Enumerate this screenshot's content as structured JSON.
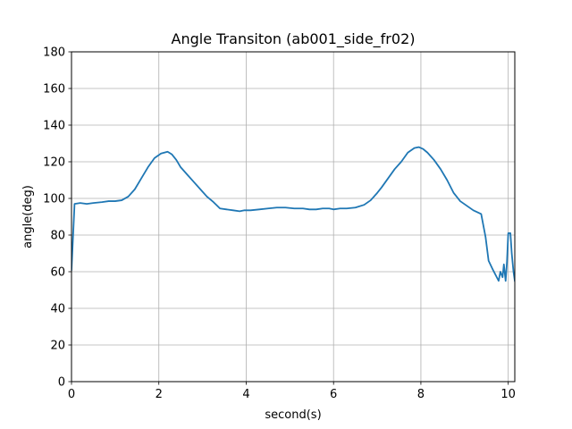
{
  "chart_data": {
    "type": "line",
    "title": "Angle Transiton (ab001_side_fr02)",
    "xlabel": "second(s)",
    "ylabel": "angle(deg)",
    "xlim": [
      0,
      10.15
    ],
    "ylim": [
      0,
      180
    ],
    "xticks": [
      0,
      2,
      4,
      6,
      8,
      10
    ],
    "yticks": [
      0,
      20,
      40,
      60,
      80,
      100,
      120,
      140,
      160,
      180
    ],
    "grid": true,
    "series_color": "#1f77b4",
    "series": [
      {
        "x": [
          0,
          0.07,
          0.2,
          0.35,
          0.5,
          0.7,
          0.85,
          1.0,
          1.15,
          1.3,
          1.45,
          1.6,
          1.75,
          1.9,
          2.05,
          2.2,
          2.3,
          2.4,
          2.5,
          2.65,
          2.8,
          2.95,
          3.1,
          3.25,
          3.4,
          3.55,
          3.7,
          3.85,
          3.95,
          4.1,
          4.3,
          4.5,
          4.7,
          4.9,
          5.1,
          5.3,
          5.45,
          5.6,
          5.75,
          5.9,
          6.0,
          6.15,
          6.3,
          6.5,
          6.7,
          6.85,
          7.0,
          7.1,
          7.25,
          7.4,
          7.55,
          7.7,
          7.85,
          7.95,
          8.05,
          8.15,
          8.3,
          8.45,
          8.6,
          8.75,
          8.9,
          9.05,
          9.2,
          9.38,
          9.48,
          9.55,
          9.65,
          9.78,
          9.82,
          9.87,
          9.9,
          9.94,
          9.97,
          10.0,
          10.05,
          10.08,
          10.12,
          10.15
        ],
        "values": [
          61,
          97,
          97.5,
          97,
          97.5,
          98,
          98.5,
          98.5,
          99,
          101,
          105,
          111,
          117,
          122,
          124.5,
          125.5,
          124,
          121,
          117,
          113,
          109,
          105,
          101,
          98,
          94.5,
          94,
          93.5,
          93,
          93.5,
          93.5,
          94,
          94.5,
          95,
          95,
          94.5,
          94.5,
          94,
          94,
          94.5,
          94.5,
          94,
          94.5,
          94.5,
          95,
          96.5,
          99,
          103,
          106,
          111,
          116,
          120,
          125,
          127.5,
          128,
          127,
          125,
          121,
          116,
          110,
          103,
          98.5,
          96,
          93.5,
          91.5,
          79,
          66,
          61,
          55,
          60,
          57,
          64,
          55,
          65,
          81,
          81,
          70,
          60,
          55
        ]
      }
    ]
  }
}
